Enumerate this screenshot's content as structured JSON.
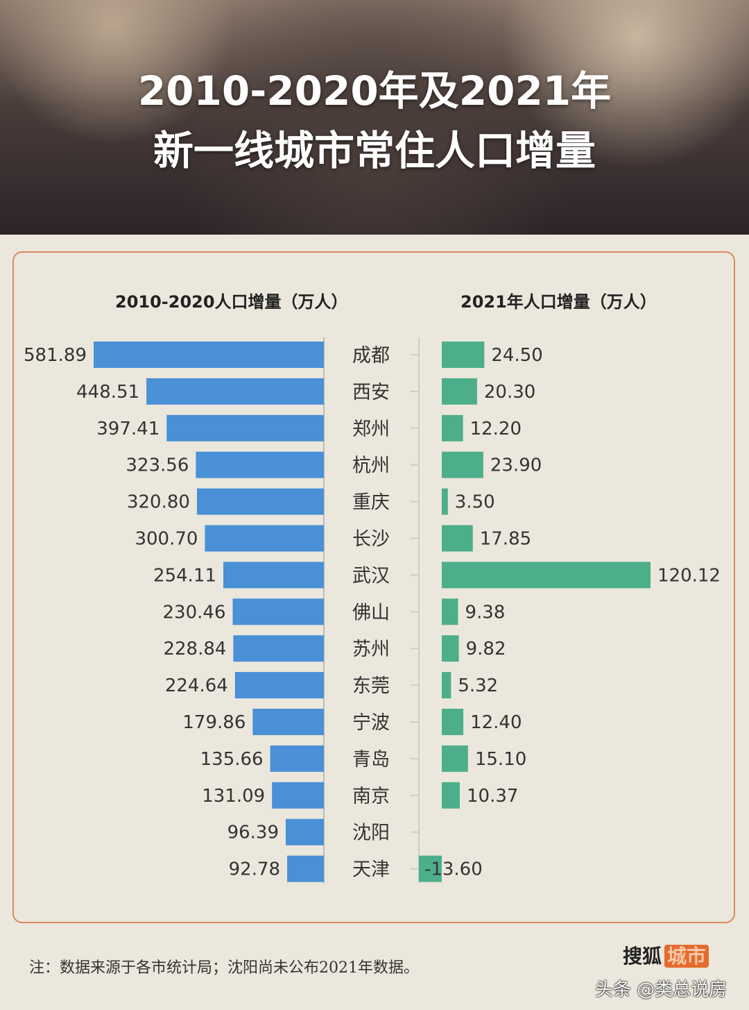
{
  "title_line1": "2010-2020年及2021年",
  "title_line2": "新一线城市常住人口增量",
  "note": "注：数据来源于各市统计局；沈阳尚未公布2021年数据。",
  "logo": {
    "text": "搜狐",
    "badge": "城市"
  },
  "watermark": "头条 @类总说房",
  "chart_data": [
    {
      "type": "bar",
      "orientation": "horizontal",
      "title": "2010-2020人口增量（万人）",
      "color": "#4a90d6",
      "categories": [
        "成都",
        "西安",
        "郑州",
        "杭州",
        "重庆",
        "长沙",
        "武汉",
        "佛山",
        "苏州",
        "东莞",
        "宁波",
        "青岛",
        "南京",
        "沈阳",
        "天津"
      ],
      "values": [
        581.89,
        448.51,
        397.41,
        323.56,
        320.8,
        300.7,
        254.11,
        230.46,
        228.84,
        224.64,
        179.86,
        135.66,
        131.09,
        96.39,
        92.78
      ],
      "labels": [
        "581.89",
        "448.51",
        "397.41",
        "323.56",
        "320.80",
        "300.70",
        "254.11",
        "230.46",
        "228.84",
        "224.64",
        "179.86",
        "135.66",
        "131.09",
        "96.39",
        "92.78"
      ]
    },
    {
      "type": "bar",
      "orientation": "horizontal",
      "title": "2021年人口增量（万人）",
      "color": "#4caf8a",
      "categories": [
        "成都",
        "西安",
        "郑州",
        "杭州",
        "重庆",
        "长沙",
        "武汉",
        "佛山",
        "苏州",
        "东莞",
        "宁波",
        "青岛",
        "南京",
        "沈阳",
        "天津"
      ],
      "values": [
        24.5,
        20.3,
        12.2,
        23.9,
        3.5,
        17.85,
        120.12,
        9.38,
        9.82,
        5.32,
        12.4,
        15.1,
        10.37,
        null,
        -13.6
      ],
      "labels": [
        "24.50",
        "20.30",
        "12.20",
        "23.90",
        "3.50",
        "17.85",
        "120.12",
        "9.38",
        "9.82",
        "5.32",
        "12.40",
        "15.10",
        "10.37",
        "",
        "-13.60"
      ]
    }
  ]
}
